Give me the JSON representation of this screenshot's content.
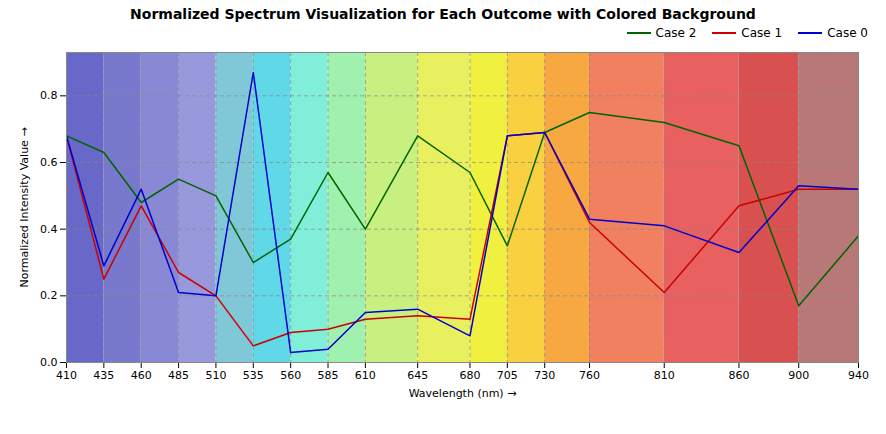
{
  "chart_data": {
    "type": "line",
    "title": "Normalized Spectrum Visualization for Each Outcome with Colored Background",
    "xlabel": "Wavelength (nm)",
    "ylabel": "Normalized Intensity Value",
    "x": [
      410,
      435,
      460,
      485,
      510,
      535,
      560,
      585,
      610,
      645,
      680,
      705,
      730,
      760,
      810,
      860,
      900,
      940
    ],
    "series": [
      {
        "name": "Case 2",
        "color": "#006400",
        "values": [
          0.68,
          0.63,
          0.48,
          0.55,
          0.5,
          0.3,
          0.37,
          0.57,
          0.4,
          0.68,
          0.57,
          0.35,
          0.69,
          0.75,
          0.72,
          0.65,
          0.17,
          0.38
        ]
      },
      {
        "name": "Case 1",
        "color": "#cc0000",
        "values": [
          0.68,
          0.25,
          0.47,
          0.27,
          0.2,
          0.05,
          0.09,
          0.1,
          0.13,
          0.14,
          0.13,
          0.68,
          0.69,
          0.42,
          0.21,
          0.47,
          0.52,
          0.52
        ]
      },
      {
        "name": "Case 0",
        "color": "#0000cc",
        "values": [
          0.68,
          0.29,
          0.52,
          0.21,
          0.2,
          0.87,
          0.03,
          0.04,
          0.15,
          0.16,
          0.08,
          0.68,
          0.69,
          0.43,
          0.41,
          0.33,
          0.53,
          0.52
        ]
      }
    ],
    "bands": [
      {
        "xmin": 410,
        "xmax": 435,
        "color": "#6868C8"
      },
      {
        "xmin": 435,
        "xmax": 460,
        "color": "#7878CC"
      },
      {
        "xmin": 460,
        "xmax": 485,
        "color": "#8888D4"
      },
      {
        "xmin": 485,
        "xmax": 510,
        "color": "#9898DC"
      },
      {
        "xmin": 510,
        "xmax": 535,
        "color": "#80C8D8"
      },
      {
        "xmin": 535,
        "xmax": 560,
        "color": "#60D8E8"
      },
      {
        "xmin": 560,
        "xmax": 585,
        "color": "#80EED8"
      },
      {
        "xmin": 585,
        "xmax": 610,
        "color": "#A0F0B0"
      },
      {
        "xmin": 610,
        "xmax": 645,
        "color": "#C8F080"
      },
      {
        "xmin": 645,
        "xmax": 680,
        "color": "#E8F060"
      },
      {
        "xmin": 680,
        "xmax": 705,
        "color": "#F0F040"
      },
      {
        "xmin": 705,
        "xmax": 730,
        "color": "#F8D040"
      },
      {
        "xmin": 730,
        "xmax": 760,
        "color": "#F8A840"
      },
      {
        "xmin": 760,
        "xmax": 810,
        "color": "#F08060"
      },
      {
        "xmin": 810,
        "xmax": 860,
        "color": "#E86060"
      },
      {
        "xmin": 860,
        "xmax": 900,
        "color": "#D85050"
      },
      {
        "xmin": 900,
        "xmax": 940,
        "color": "#B87878"
      }
    ],
    "xlim": [
      410,
      940
    ],
    "ylim": [
      0.0,
      0.93
    ],
    "xticks": [
      410,
      435,
      460,
      485,
      510,
      535,
      560,
      585,
      610,
      645,
      680,
      705,
      730,
      760,
      810,
      860,
      900,
      940
    ],
    "yticks": [
      {
        "value": 0.0,
        "label": "0.0"
      },
      0.2,
      0.4,
      0.6,
      0.8
    ],
    "grid": true,
    "legend": "upper right"
  }
}
